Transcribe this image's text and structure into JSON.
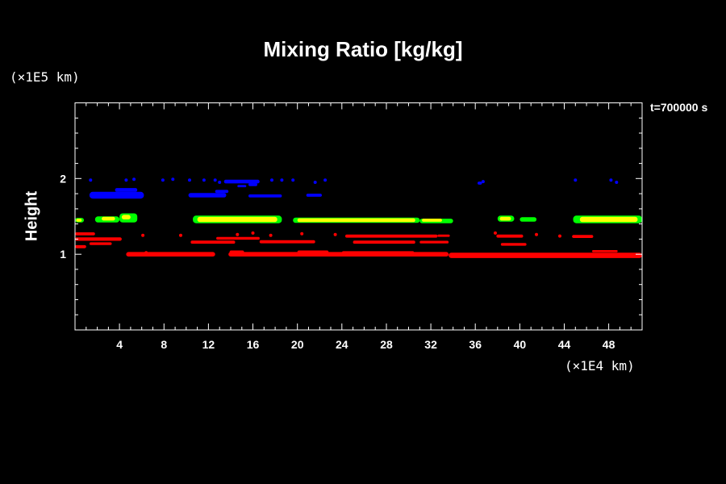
{
  "chart_data": {
    "type": "heatmap",
    "title": "Mixing Ratio [kg/kg]",
    "time_label": "t=700000 s",
    "xlabel": "",
    "ylabel": "Height",
    "x_unit": "(×1E4 km)",
    "y_unit": "(×1E5 km)",
    "xlim": [
      0,
      51
    ],
    "ylim": [
      0,
      3
    ],
    "x_ticks": [
      4,
      8,
      12,
      16,
      20,
      24,
      28,
      32,
      36,
      40,
      44,
      48
    ],
    "y_ticks": [
      1,
      2
    ],
    "colors": {
      "red": "#ff0000",
      "yellow": "#ffff00",
      "green": "#00ff00",
      "blue": "#0000ff"
    },
    "bands": [
      {
        "color": "red",
        "segments": [
          [
            0,
            1.0,
            1.1,
            0.04
          ],
          [
            4.6,
            12.6,
            1.0,
            0.06
          ],
          [
            13.8,
            33.6,
            1.0,
            0.06
          ],
          [
            33.6,
            51,
            0.985,
            0.07
          ],
          [
            13.9,
            15.2,
            1.03,
            0.04
          ],
          [
            20,
            22.8,
            1.03,
            0.04
          ],
          [
            24,
            30.5,
            1.02,
            0.04
          ],
          [
            0,
            1.8,
            1.27,
            0.04
          ],
          [
            0,
            4.2,
            1.2,
            0.045
          ],
          [
            1.3,
            3.3,
            1.14,
            0.035
          ],
          [
            10.4,
            14.4,
            1.16,
            0.04
          ],
          [
            16.6,
            21.6,
            1.165,
            0.04
          ],
          [
            25,
            30.6,
            1.16,
            0.04
          ],
          [
            31,
            33.6,
            1.16,
            0.035
          ],
          [
            12.7,
            16.6,
            1.21,
            0.035
          ],
          [
            24.3,
            32.6,
            1.24,
            0.04
          ],
          [
            32.6,
            33.7,
            1.245,
            0.03
          ],
          [
            37.9,
            40.3,
            1.24,
            0.04
          ],
          [
            44.7,
            46.6,
            1.235,
            0.04
          ],
          [
            38.3,
            40.6,
            1.13,
            0.035
          ],
          [
            46.5,
            48.8,
            1.04,
            0.03
          ]
        ]
      },
      {
        "color": "green",
        "segments": [
          [
            0,
            0.8,
            1.45,
            0.06
          ],
          [
            1.8,
            4.0,
            1.46,
            0.08
          ],
          [
            4.0,
            5.6,
            1.48,
            0.12
          ],
          [
            10.6,
            18.6,
            1.46,
            0.1
          ],
          [
            19.6,
            31.0,
            1.45,
            0.07
          ],
          [
            31.0,
            34.0,
            1.44,
            0.06
          ],
          [
            38.0,
            39.5,
            1.47,
            0.08
          ],
          [
            40.0,
            41.5,
            1.46,
            0.06
          ],
          [
            44.8,
            51,
            1.46,
            0.1
          ]
        ]
      },
      {
        "color": "yellow",
        "segments": [
          [
            0.1,
            0.6,
            1.45,
            0.04
          ],
          [
            2.4,
            3.6,
            1.47,
            0.05
          ],
          [
            4.2,
            5.0,
            1.49,
            0.06
          ],
          [
            11.0,
            18.2,
            1.46,
            0.07
          ],
          [
            20.0,
            30.6,
            1.45,
            0.05
          ],
          [
            31.2,
            33.0,
            1.45,
            0.04
          ],
          [
            38.2,
            39.2,
            1.47,
            0.05
          ],
          [
            45.4,
            50.6,
            1.46,
            0.07
          ]
        ]
      },
      {
        "color": "blue",
        "segments": [
          [
            1.3,
            6.2,
            1.78,
            0.09
          ],
          [
            3.6,
            5.6,
            1.85,
            0.05
          ],
          [
            10.2,
            13.6,
            1.78,
            0.06
          ],
          [
            12.6,
            13.8,
            1.83,
            0.04
          ],
          [
            15.6,
            18.6,
            1.77,
            0.04
          ],
          [
            20.8,
            22.2,
            1.78,
            0.04
          ],
          [
            13.4,
            16.6,
            1.96,
            0.05
          ],
          [
            15.6,
            16.4,
            1.92,
            0.04
          ],
          [
            14.6,
            15.4,
            1.9,
            0.03
          ],
          [
            36.2,
            36.6,
            1.94,
            0.04
          ]
        ]
      },
      {
        "color": "blue",
        "dots": [
          [
            1.4,
            1.98
          ],
          [
            4.6,
            1.98
          ],
          [
            5.3,
            1.99
          ],
          [
            7.9,
            1.98
          ],
          [
            8.8,
            1.99
          ],
          [
            10.3,
            1.98
          ],
          [
            11.6,
            1.98
          ],
          [
            12.6,
            1.98
          ],
          [
            13.0,
            1.95
          ],
          [
            17.7,
            1.98
          ],
          [
            18.6,
            1.98
          ],
          [
            19.6,
            1.98
          ],
          [
            21.6,
            1.95
          ],
          [
            22.5,
            1.98
          ],
          [
            36.7,
            1.96
          ],
          [
            45.0,
            1.98
          ],
          [
            48.2,
            1.98
          ],
          [
            48.7,
            1.95
          ]
        ]
      },
      {
        "color": "red",
        "dots": [
          [
            6.4,
            1.02
          ],
          [
            6.1,
            1.25
          ],
          [
            9.5,
            1.25
          ],
          [
            14.6,
            1.26
          ],
          [
            16.0,
            1.28
          ],
          [
            17.6,
            1.25
          ],
          [
            20.4,
            1.27
          ],
          [
            23.4,
            1.26
          ],
          [
            37.8,
            1.28
          ],
          [
            41.5,
            1.26
          ],
          [
            43.6,
            1.24
          ]
        ]
      }
    ]
  }
}
